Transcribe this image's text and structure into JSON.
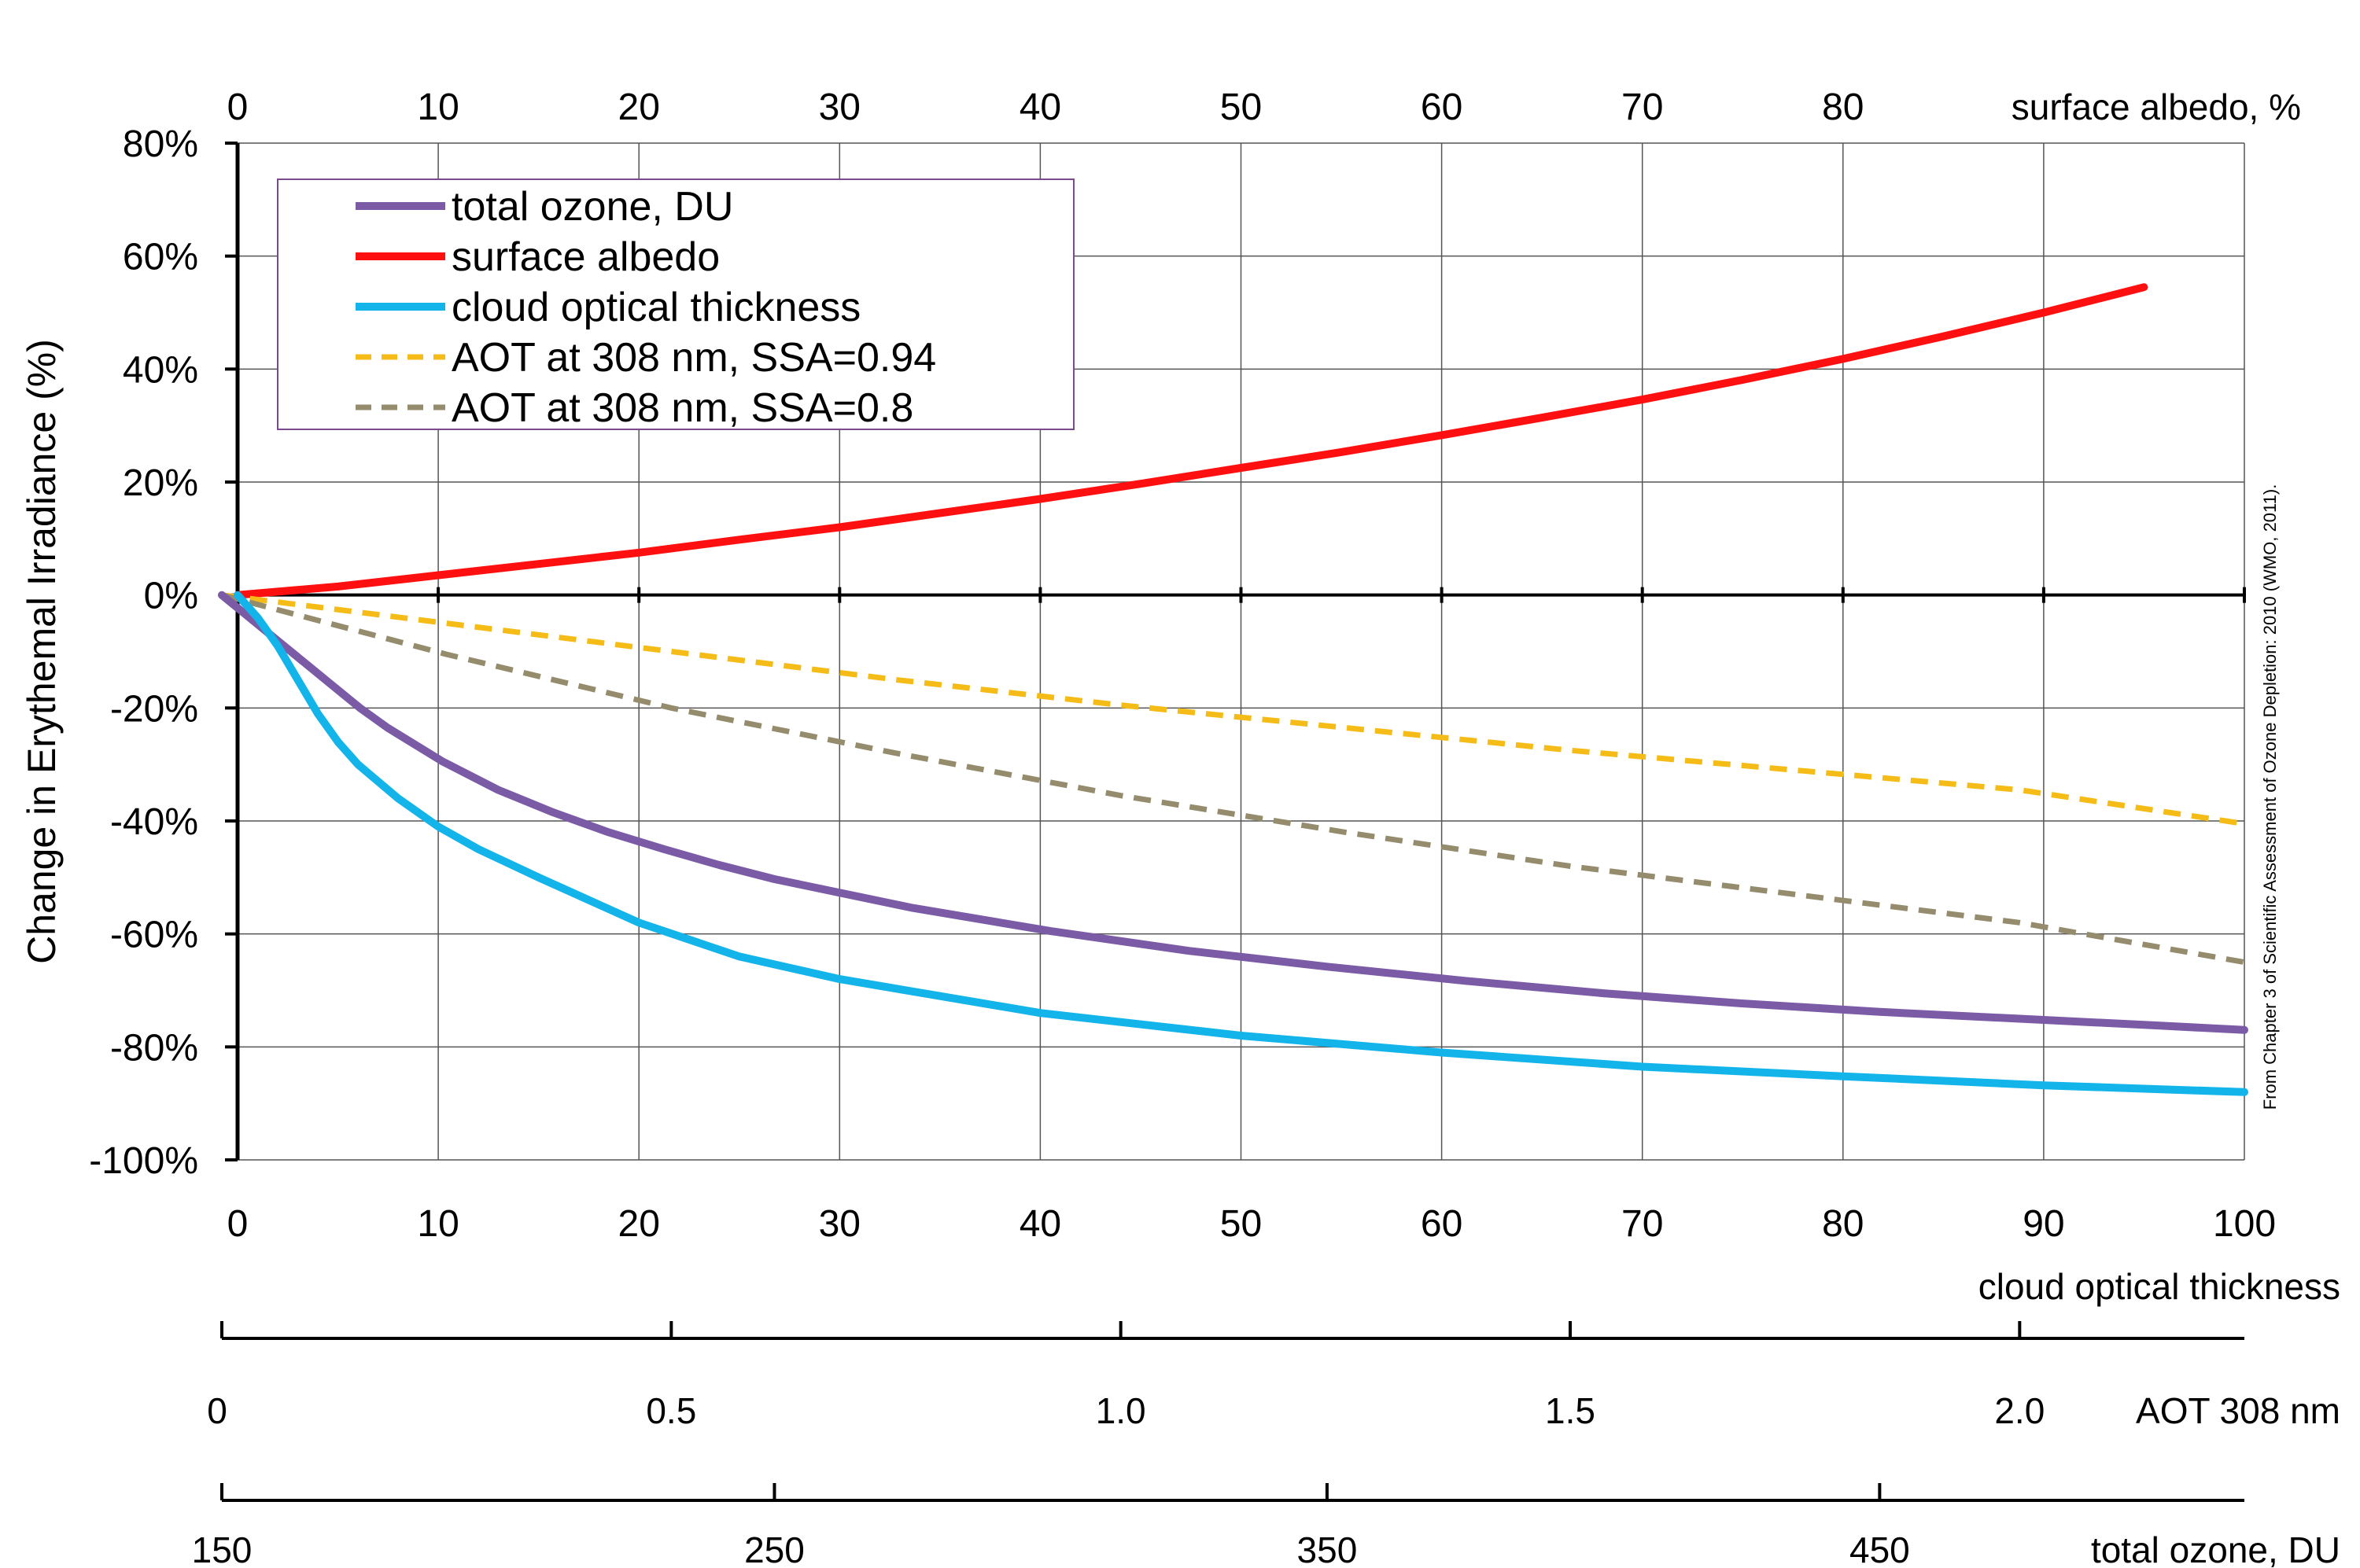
{
  "chart_data": {
    "type": "line",
    "ylabel": "Change in Erythemal Irradiance (%)",
    "ylim": [
      -100,
      80
    ],
    "y_ticks": [
      "80%",
      "60%",
      "40%",
      "20%",
      "0%",
      "-20%",
      "-40%",
      "-60%",
      "-80%",
      "-100%"
    ],
    "grid": true,
    "legend_position": "top-left",
    "credit": "From Chapter 3 of Scientific Assessment of Ozone Depletion: 2010 (WMO, 2011).",
    "axes": {
      "top": {
        "label": "surface albedo, %",
        "range": [
          0,
          100
        ],
        "tick_values": [
          0,
          10,
          20,
          30,
          40,
          50,
          60,
          70,
          80
        ],
        "tick_labels": [
          "0",
          "10",
          "20",
          "30",
          "40",
          "50",
          "60",
          "70",
          "80"
        ]
      },
      "bottom": {
        "label": "cloud optical thickness",
        "range": [
          0,
          100
        ],
        "tick_values": [
          0,
          10,
          20,
          30,
          40,
          50,
          60,
          70,
          80,
          90,
          100
        ],
        "tick_labels": [
          "0",
          "10",
          "20",
          "30",
          "40",
          "50",
          "60",
          "70",
          "80",
          "90",
          "100"
        ]
      },
      "aot": {
        "label": "AOT 308 nm",
        "range": [
          0,
          2.25
        ],
        "tick_values": [
          0,
          0.5,
          1.0,
          1.5,
          2.0
        ],
        "tick_labels": [
          "0",
          "0.5",
          "1.0",
          "1.5",
          "2.0"
        ]
      },
      "ozone": {
        "label": "total ozone, DU",
        "range": [
          150,
          516
        ],
        "tick_values": [
          150,
          250,
          350,
          450
        ],
        "tick_labels": [
          "150",
          "250",
          "350",
          "450"
        ]
      }
    },
    "series": [
      {
        "name": "total ozone, DU",
        "color": "#7b5aa6",
        "style": "solid",
        "axis": "ozone",
        "x": [
          150,
          155,
          160,
          165,
          170,
          175,
          180,
          190,
          200,
          210,
          220,
          230,
          240,
          250,
          275,
          300,
          325,
          350,
          375,
          400,
          425,
          450,
          475,
          500,
          516
        ],
        "y": [
          0,
          -4,
          -8,
          -12,
          -16,
          -20,
          -23.5,
          -29.5,
          -34.5,
          -38.5,
          -42,
          -45,
          -47.8,
          -50.3,
          -55.4,
          -59.5,
          -63,
          -65.8,
          -68.3,
          -70.5,
          -72.3,
          -73.8,
          -75,
          -76.2,
          -77
        ]
      },
      {
        "name": "surface albedo",
        "color": "#ff1010",
        "style": "solid",
        "axis": "top",
        "x": [
          0,
          5,
          10,
          15,
          20,
          25,
          30,
          35,
          40,
          45,
          50,
          55,
          60,
          65,
          70,
          75,
          80,
          85,
          90,
          95
        ],
        "y": [
          0,
          1.5,
          3.5,
          5.5,
          7.5,
          9.8,
          12,
          14.5,
          17,
          19.7,
          22.5,
          25.3,
          28.3,
          31.4,
          34.6,
          38.1,
          41.8,
          45.8,
          50,
          54.5
        ]
      },
      {
        "name": "cloud optical thickness",
        "color": "#12b4ea",
        "style": "solid",
        "axis": "bottom",
        "x": [
          0,
          1,
          2,
          3,
          4,
          5,
          6,
          8,
          10,
          12,
          15,
          20,
          25,
          30,
          40,
          50,
          60,
          70,
          80,
          90,
          100
        ],
        "y": [
          0,
          -4,
          -9,
          -15,
          -21,
          -26,
          -30,
          -36,
          -41,
          -45,
          -50,
          -58,
          -64,
          -68,
          -74,
          -78,
          -81,
          -83.5,
          -85.2,
          -86.8,
          -88
        ]
      },
      {
        "name": "AOT at 308 nm, SSA=0.94",
        "color": "#f5bc17",
        "style": "dashed",
        "axis": "aot",
        "x": [
          0,
          0.25,
          0.5,
          0.75,
          1.0,
          1.25,
          1.5,
          1.75,
          2.0,
          2.25
        ],
        "y": [
          0,
          -5,
          -10,
          -15,
          -19.5,
          -23.5,
          -27.5,
          -31,
          -34.5,
          -40.5
        ]
      },
      {
        "name": "AOT at 308 nm, SSA=0.8",
        "color": "#948c6c",
        "style": "dashed",
        "axis": "aot",
        "x": [
          0,
          0.25,
          0.5,
          0.75,
          1.0,
          1.25,
          1.5,
          1.75,
          2.0,
          2.25
        ],
        "y": [
          0,
          -10.5,
          -20,
          -28,
          -35.5,
          -42,
          -48,
          -53,
          -58,
          -65
        ]
      }
    ]
  }
}
